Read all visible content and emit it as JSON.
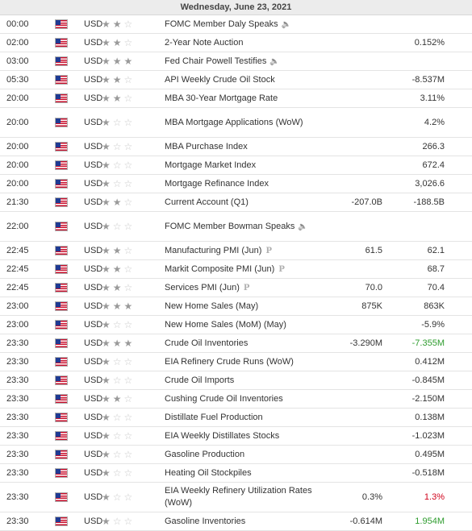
{
  "header": {
    "date": "Wednesday, June 23, 2021"
  },
  "colors": {
    "positive": "#2e9c2e",
    "negative": "#d0021b",
    "star_on": "#9a9a9a",
    "star_off": "#c8c8c8"
  },
  "events": [
    {
      "time": "00:00",
      "currency": "USD",
      "stars": 2,
      "event": "FOMC Member Daly Speaks",
      "icon": "speaker",
      "actual": "",
      "previous": "",
      "double": false
    },
    {
      "time": "02:00",
      "currency": "USD",
      "stars": 2,
      "event": "2-Year Note Auction",
      "icon": "",
      "actual": "",
      "previous": "0.152%",
      "double": false
    },
    {
      "time": "03:00",
      "currency": "USD",
      "stars": 3,
      "event": "Fed Chair Powell Testifies",
      "icon": "speaker",
      "actual": "",
      "previous": "",
      "double": false
    },
    {
      "time": "05:30",
      "currency": "USD",
      "stars": 2,
      "event": "API Weekly Crude Oil Stock",
      "icon": "",
      "actual": "",
      "previous": "-8.537M",
      "double": false
    },
    {
      "time": "20:00",
      "currency": "USD",
      "stars": 2,
      "event": "MBA 30-Year Mortgage Rate",
      "icon": "",
      "actual": "",
      "previous": "3.11%",
      "double": false
    },
    {
      "time": "20:00",
      "currency": "USD",
      "stars": 1,
      "event": "MBA Mortgage Applications (WoW)",
      "icon": "",
      "actual": "",
      "previous": "4.2%",
      "double": true
    },
    {
      "time": "20:00",
      "currency": "USD",
      "stars": 1,
      "event": "MBA Purchase Index",
      "icon": "",
      "actual": "",
      "previous": "266.3",
      "double": false
    },
    {
      "time": "20:00",
      "currency": "USD",
      "stars": 1,
      "event": "Mortgage Market Index",
      "icon": "",
      "actual": "",
      "previous": "672.4",
      "double": false
    },
    {
      "time": "20:00",
      "currency": "USD",
      "stars": 1,
      "event": "Mortgage Refinance Index",
      "icon": "",
      "actual": "",
      "previous": "3,026.6",
      "double": false
    },
    {
      "time": "21:30",
      "currency": "USD",
      "stars": 2,
      "event": "Current Account (Q1)",
      "icon": "",
      "actual": "-207.0B",
      "previous": "-188.5B",
      "double": false
    },
    {
      "time": "22:00",
      "currency": "USD",
      "stars": 1,
      "event": "FOMC Member Bowman Speaks",
      "icon": "speaker",
      "actual": "",
      "previous": "",
      "double": true
    },
    {
      "time": "22:45",
      "currency": "USD",
      "stars": 2,
      "event": "Manufacturing PMI (Jun)",
      "icon": "prelim",
      "actual": "61.5",
      "previous": "62.1",
      "double": false
    },
    {
      "time": "22:45",
      "currency": "USD",
      "stars": 2,
      "event": "Markit Composite PMI (Jun)",
      "icon": "prelim",
      "actual": "",
      "previous": "68.7",
      "double": false
    },
    {
      "time": "22:45",
      "currency": "USD",
      "stars": 2,
      "event": "Services PMI (Jun)",
      "icon": "prelim",
      "actual": "70.0",
      "previous": "70.4",
      "double": false
    },
    {
      "time": "23:00",
      "currency": "USD",
      "stars": 3,
      "event": "New Home Sales (May)",
      "icon": "",
      "actual": "875K",
      "previous": "863K",
      "double": false
    },
    {
      "time": "23:00",
      "currency": "USD",
      "stars": 1,
      "event": "New Home Sales (MoM) (May)",
      "icon": "",
      "actual": "",
      "previous": "-5.9%",
      "double": false
    },
    {
      "time": "23:30",
      "currency": "USD",
      "stars": 3,
      "event": "Crude Oil Inventories",
      "icon": "",
      "actual": "-3.290M",
      "previous": "-7.355M",
      "previous_color": "green",
      "double": false
    },
    {
      "time": "23:30",
      "currency": "USD",
      "stars": 1,
      "event": "EIA Refinery Crude Runs (WoW)",
      "icon": "",
      "actual": "",
      "previous": "0.412M",
      "double": false
    },
    {
      "time": "23:30",
      "currency": "USD",
      "stars": 1,
      "event": "Crude Oil Imports",
      "icon": "",
      "actual": "",
      "previous": "-0.845M",
      "double": false
    },
    {
      "time": "23:30",
      "currency": "USD",
      "stars": 2,
      "event": "Cushing Crude Oil Inventories",
      "icon": "",
      "actual": "",
      "previous": "-2.150M",
      "double": false
    },
    {
      "time": "23:30",
      "currency": "USD",
      "stars": 1,
      "event": "Distillate Fuel Production",
      "icon": "",
      "actual": "",
      "previous": "0.138M",
      "double": false
    },
    {
      "time": "23:30",
      "currency": "USD",
      "stars": 1,
      "event": "EIA Weekly Distillates Stocks",
      "icon": "",
      "actual": "",
      "previous": "-1.023M",
      "double": false
    },
    {
      "time": "23:30",
      "currency": "USD",
      "stars": 1,
      "event": "Gasoline Production",
      "icon": "",
      "actual": "",
      "previous": "0.495M",
      "double": false
    },
    {
      "time": "23:30",
      "currency": "USD",
      "stars": 1,
      "event": "Heating Oil Stockpiles",
      "icon": "",
      "actual": "",
      "previous": "-0.518M",
      "double": false
    },
    {
      "time": "23:30",
      "currency": "USD",
      "stars": 1,
      "event": "EIA Weekly Refinery Utilization Rates (WoW)",
      "icon": "",
      "actual": "0.3%",
      "previous": "1.3%",
      "previous_color": "red",
      "double": true
    },
    {
      "time": "23:30",
      "currency": "USD",
      "stars": 1,
      "event": "Gasoline Inventories",
      "icon": "",
      "actual": "-0.614M",
      "previous": "1.954M",
      "previous_color": "green",
      "double": false
    }
  ]
}
